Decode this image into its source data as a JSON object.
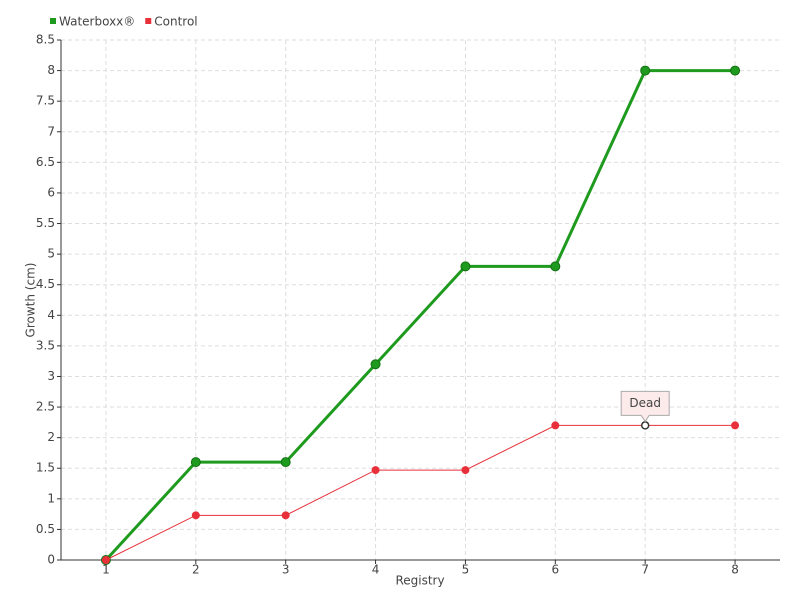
{
  "chart_data": {
    "type": "line",
    "x": [
      1,
      2,
      3,
      4,
      5,
      6,
      7,
      8
    ],
    "series": [
      {
        "name": "Waterboxx®",
        "color": "#1e9a1e",
        "values": [
          0,
          1.6,
          1.6,
          3.2,
          4.8,
          4.8,
          8,
          8
        ]
      },
      {
        "name": "Control",
        "color": "#e8303a",
        "values": [
          0,
          0.73,
          0.73,
          1.47,
          1.47,
          2.2,
          2.2,
          2.2
        ]
      }
    ],
    "xlabel": "Registry",
    "ylabel": "Growth (cm)",
    "xlim": [
      0.5,
      8.5
    ],
    "xticks": [
      1,
      2,
      3,
      4,
      5,
      6,
      7,
      8
    ],
    "ylim": [
      0,
      8.5
    ],
    "yticks": [
      0,
      0.5,
      1,
      1.5,
      2,
      2.5,
      3,
      3.5,
      4,
      4.5,
      5,
      5.5,
      6,
      6.5,
      7,
      7.5,
      8,
      8.5
    ],
    "grid": true,
    "legend": "top-left",
    "annotations": [
      {
        "text": "Dead",
        "x": 7
      }
    ]
  }
}
